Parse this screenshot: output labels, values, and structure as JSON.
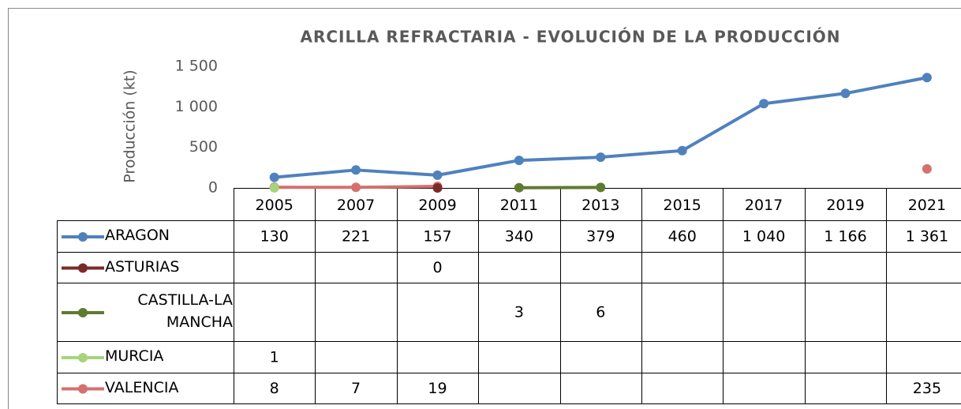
{
  "chart_data": {
    "type": "line",
    "title": "ARCILLA REFRACTARIA - EVOLUCIÓN DE LA PRODUCCIÓN",
    "y_label": "Producción (kt)",
    "categories": [
      "2005",
      "2007",
      "2009",
      "2011",
      "2013",
      "2015",
      "2017",
      "2019",
      "2021"
    ],
    "ylim": [
      0,
      1500
    ],
    "yticks": [
      0,
      500,
      {
        "value": 1000,
        "label": "1 000"
      },
      {
        "value": 1500,
        "label": "1 500"
      }
    ],
    "grid": false,
    "series": [
      {
        "name": "ARAGON",
        "color": "#4f81bd",
        "values": [
          130,
          221,
          157,
          340,
          379,
          460,
          1040,
          1166,
          1361
        ],
        "value_labels": [
          "130",
          "221",
          "157",
          "340",
          "379",
          "460",
          "1 040",
          "1 166",
          "1 361"
        ]
      },
      {
        "name": "ASTURIAS",
        "color": "#7b2a2a",
        "values": [
          null,
          null,
          0,
          null,
          null,
          null,
          null,
          null,
          null
        ]
      },
      {
        "name": "CASTILLA-LA MANCHA",
        "color": "#5f7b30",
        "values": [
          null,
          null,
          null,
          3,
          6,
          null,
          null,
          null,
          null
        ]
      },
      {
        "name": "MURCIA",
        "color": "#a5d47a",
        "values": [
          1,
          null,
          null,
          null,
          null,
          null,
          null,
          null,
          null
        ]
      },
      {
        "name": "VALENCIA",
        "color": "#d4716f",
        "values": [
          8,
          7,
          19,
          null,
          null,
          null,
          null,
          null,
          235
        ]
      }
    ]
  }
}
